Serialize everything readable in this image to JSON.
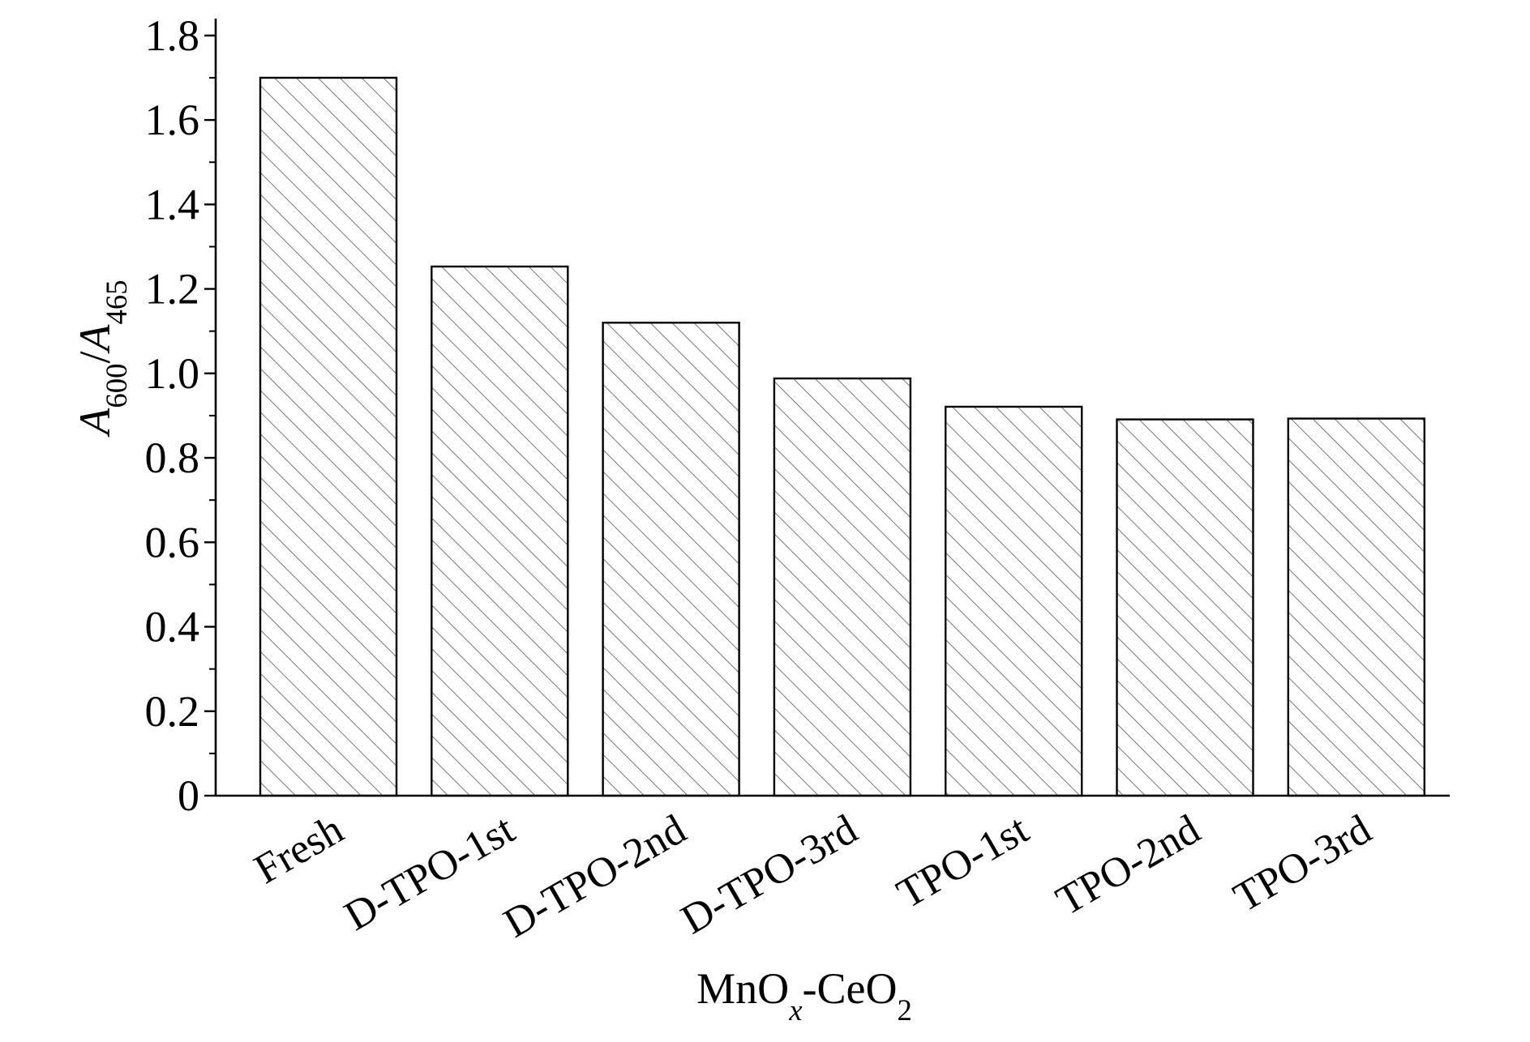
{
  "chart_data": {
    "type": "bar",
    "categories": [
      "Fresh",
      "D-TPO-1st",
      "D-TPO-2nd",
      "D-TPO-3rd",
      "TPO-1st",
      "TPO-2nd",
      "TPO-3rd"
    ],
    "values": [
      1.7,
      1.253,
      1.12,
      0.988,
      0.921,
      0.891,
      0.893
    ],
    "color": "#ffffff",
    "hatch": "\\",
    "ylim": [
      0,
      1.84
    ],
    "yticks": [
      {
        "value": 0,
        "label": "0"
      },
      {
        "value": 0.2,
        "label": "0.2"
      },
      {
        "value": 0.4,
        "label": "0.4"
      },
      {
        "value": 0.6,
        "label": "0.6"
      },
      {
        "value": 0.8,
        "label": "0.8"
      },
      {
        "value": 1.0,
        "label": "1.0"
      },
      {
        "value": 1.2,
        "label": "1.2"
      },
      {
        "value": 1.4,
        "label": "1.4"
      },
      {
        "value": 1.6,
        "label": "1.6"
      },
      {
        "value": 1.8,
        "label": "1.8"
      }
    ],
    "minor_yticks": [
      0.1,
      0.3,
      0.5,
      0.7,
      0.9,
      1.1,
      1.3,
      1.5,
      1.7
    ],
    "y_label": [
      {
        "text": "A",
        "style": "italic"
      },
      {
        "text": "600",
        "style": "sub"
      },
      {
        "text": "/",
        "style": "normal"
      },
      {
        "text": "A",
        "style": "italic"
      },
      {
        "text": "465",
        "style": "sub"
      }
    ],
    "x_label": [
      {
        "text": "MnO",
        "style": "normal"
      },
      {
        "text": "x",
        "style": "italic-sub"
      },
      {
        "text": "-CeO",
        "style": "normal"
      },
      {
        "text": "2",
        "style": "sub"
      }
    ],
    "grid": false
  }
}
